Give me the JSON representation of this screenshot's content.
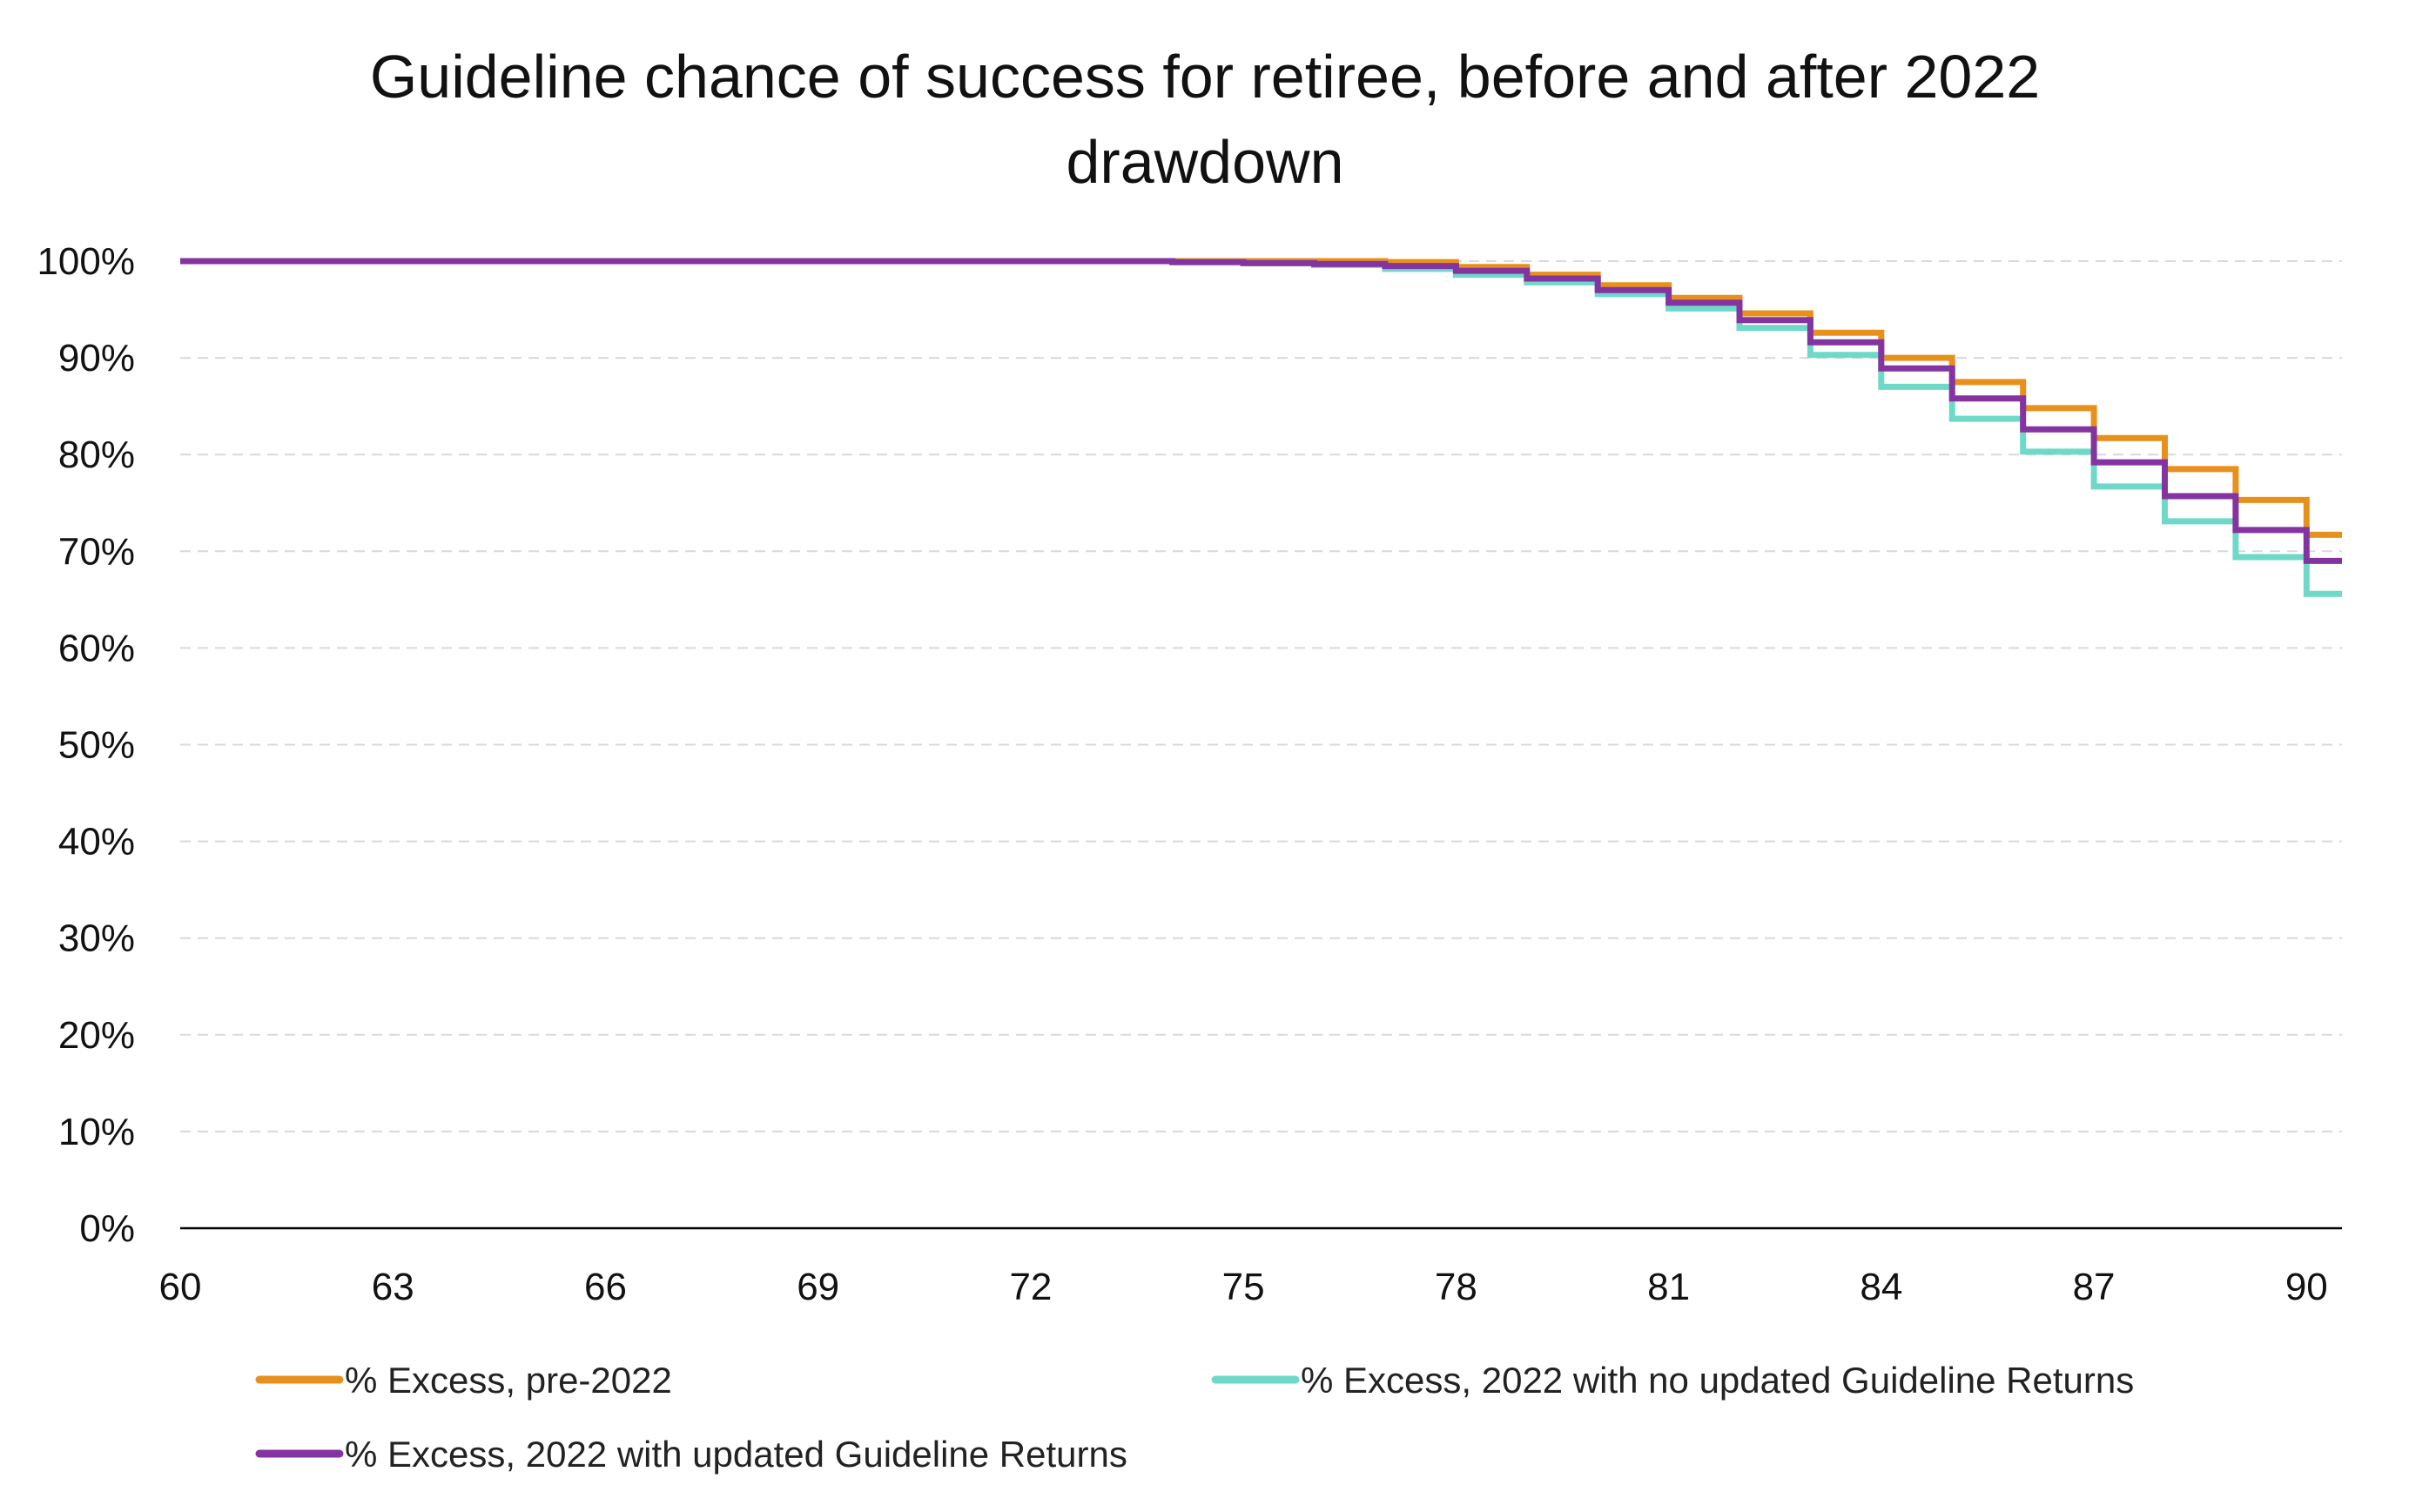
{
  "chart_data": {
    "type": "line",
    "title": "Guideline chance of success for retiree, before and after 2022 drawdown",
    "title_lines": [
      "Guideline chance of success for retiree, before and after 2022",
      "drawdown"
    ],
    "xlabel": "",
    "ylabel": "",
    "xlim": [
      60,
      90.5
    ],
    "ylim": [
      0,
      100
    ],
    "x_ticks": [
      60,
      63,
      66,
      69,
      72,
      75,
      78,
      81,
      84,
      87,
      90
    ],
    "x_tick_labels": [
      "60",
      "63",
      "66",
      "69",
      "72",
      "75",
      "78",
      "81",
      "84",
      "87",
      "90"
    ],
    "y_ticks": [
      0,
      10,
      20,
      30,
      40,
      50,
      60,
      70,
      80,
      90,
      100
    ],
    "y_tick_labels": [
      "0%",
      "10%",
      "20%",
      "30%",
      "40%",
      "50%",
      "60%",
      "70%",
      "80%",
      "90%",
      "100%"
    ],
    "grid": "horizontal dashed",
    "legend_position": "bottom",
    "step": "post",
    "x": [
      60,
      74,
      75,
      76,
      77,
      78,
      79,
      80,
      81,
      82,
      83,
      84,
      85,
      86,
      87,
      88,
      89,
      90,
      90.5
    ],
    "series": [
      {
        "name": "% Excess, pre-2022",
        "color": "#E8901C",
        "values": [
          100,
          100,
          100,
          100,
          99.9,
          99.4,
          98.6,
          97.5,
          96.2,
          94.6,
          92.6,
          90.0,
          87.5,
          84.8,
          81.7,
          78.5,
          75.3,
          71.7,
          71.7
        ]
      },
      {
        "name": "% Excess, 2022 with no updated Guideline Returns",
        "color": "#6ED9C8",
        "values": [
          100,
          99.9,
          99.8,
          99.6,
          99.2,
          98.6,
          97.8,
          96.6,
          95.1,
          93.1,
          90.3,
          87.0,
          83.7,
          80.3,
          76.7,
          73.1,
          69.4,
          65.6,
          65.6
        ]
      },
      {
        "name": "% Excess, 2022 with updated Guideline Returns",
        "color": "#8434A0",
        "values": [
          100,
          99.9,
          99.8,
          99.7,
          99.5,
          99.0,
          98.2,
          97.0,
          95.7,
          93.9,
          91.6,
          88.9,
          85.8,
          82.6,
          79.2,
          75.7,
          72.2,
          69.0,
          69.0
        ]
      }
    ]
  }
}
